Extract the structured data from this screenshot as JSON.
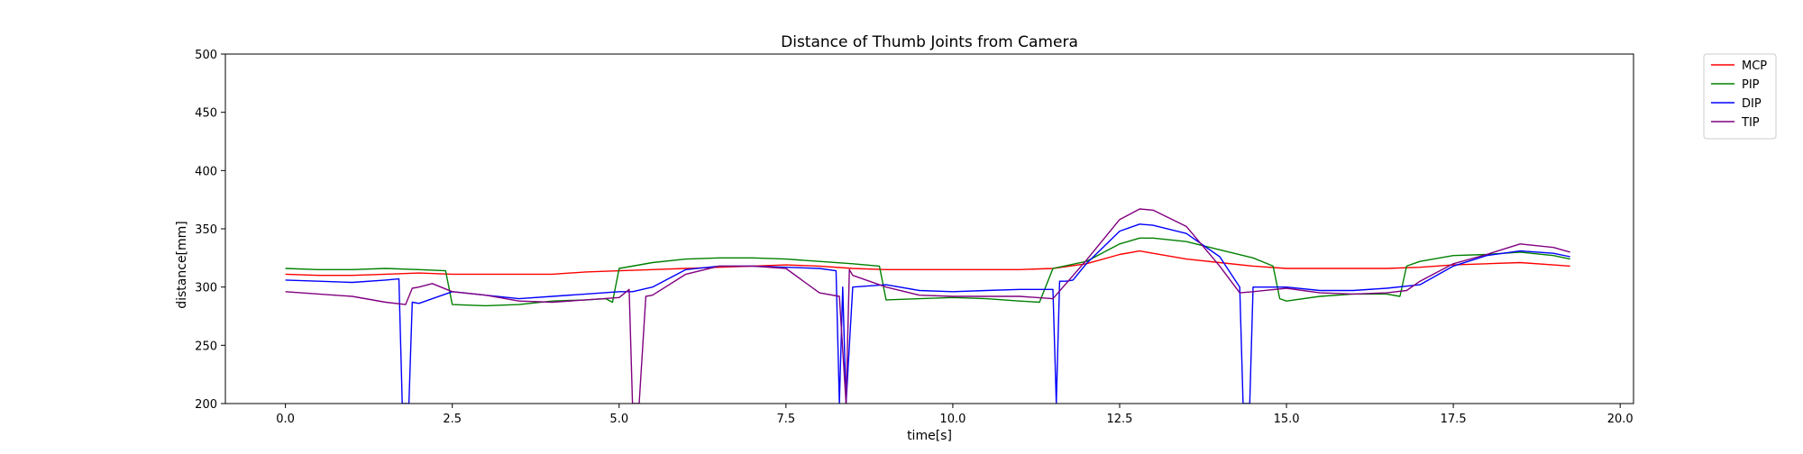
{
  "chart_data": {
    "type": "line",
    "title": "Distance of Thumb Joints from Camera",
    "xlabel": "time[s]",
    "ylabel": "distance[mm]",
    "xlim": [
      -0.9,
      20.2
    ],
    "ylim": [
      200,
      500
    ],
    "x_ticks": [
      0.0,
      2.5,
      5.0,
      7.5,
      10.0,
      12.5,
      15.0,
      17.5,
      20.0
    ],
    "x_tick_labels": [
      "0.0",
      "2.5",
      "5.0",
      "7.5",
      "10.0",
      "12.5",
      "15.0",
      "17.5",
      "20.0"
    ],
    "y_ticks": [
      200,
      250,
      300,
      350,
      400,
      450,
      500
    ],
    "y_tick_labels": [
      "200",
      "250",
      "300",
      "350",
      "400",
      "450",
      "500"
    ],
    "grid": false,
    "legend_position": "outside-top-right",
    "series": [
      {
        "name": "MCP",
        "color": "#ff0000",
        "x": [
          0,
          0.5,
          1.0,
          1.5,
          2.0,
          2.5,
          3.0,
          3.5,
          4.0,
          4.5,
          5.0,
          5.5,
          6.0,
          6.5,
          7.0,
          7.5,
          8.0,
          8.5,
          9.0,
          9.5,
          10.0,
          10.5,
          11.0,
          11.5,
          12.0,
          12.5,
          12.8,
          13.0,
          13.5,
          14.0,
          14.5,
          15.0,
          15.5,
          16.0,
          16.5,
          17.0,
          17.5,
          18.0,
          18.5,
          19.0,
          19.25
        ],
        "y": [
          311,
          310,
          310,
          311,
          312,
          311,
          311,
          311,
          311,
          313,
          314,
          315,
          316,
          317,
          318,
          319,
          318,
          316,
          315,
          315,
          315,
          315,
          315,
          316,
          320,
          328,
          331,
          329,
          324,
          321,
          318,
          316,
          316,
          316,
          316,
          317,
          319,
          320,
          321,
          319,
          318
        ]
      },
      {
        "name": "PIP",
        "color": "#008000",
        "x": [
          0,
          0.5,
          1.0,
          1.5,
          2.0,
          2.4,
          2.5,
          3.0,
          3.5,
          4.0,
          4.5,
          4.8,
          4.9,
          5.0,
          5.5,
          6.0,
          6.5,
          7.0,
          7.5,
          8.0,
          8.5,
          8.9,
          9.0,
          9.5,
          10.0,
          10.5,
          11.0,
          11.3,
          11.5,
          12.0,
          12.5,
          12.8,
          13.0,
          13.5,
          14.0,
          14.5,
          14.8,
          14.9,
          15.0,
          15.5,
          16.0,
          16.5,
          16.7,
          16.8,
          17.0,
          17.5,
          18.0,
          18.5,
          19.0,
          19.25
        ],
        "y": [
          316,
          315,
          315,
          316,
          315,
          314,
          285,
          284,
          285,
          288,
          289,
          290,
          287,
          316,
          321,
          324,
          325,
          325,
          324,
          322,
          320,
          318,
          289,
          290,
          291,
          290,
          288,
          287,
          316,
          322,
          337,
          342,
          342,
          339,
          332,
          325,
          318,
          290,
          288,
          292,
          294,
          294,
          292,
          318,
          322,
          327,
          328,
          330,
          327,
          324
        ]
      },
      {
        "name": "DIP",
        "color": "#0000ff",
        "x": [
          0,
          0.5,
          1.0,
          1.5,
          1.7,
          1.75,
          1.85,
          1.9,
          2.0,
          2.5,
          3.0,
          3.5,
          4.0,
          4.5,
          5.0,
          5.2,
          5.5,
          6.0,
          6.5,
          7.0,
          7.5,
          8.0,
          8.25,
          8.3,
          8.35,
          8.4,
          8.5,
          9.0,
          9.5,
          10.0,
          10.5,
          11.0,
          11.5,
          11.55,
          11.6,
          11.7,
          11.8,
          12.0,
          12.5,
          12.8,
          13.0,
          13.5,
          14.0,
          14.3,
          14.35,
          14.45,
          14.5,
          15.0,
          15.5,
          16.0,
          16.5,
          17.0,
          17.5,
          18.0,
          18.5,
          19.0,
          19.25
        ],
        "y": [
          306,
          305,
          304,
          306,
          307,
          200,
          200,
          287,
          286,
          296,
          293,
          290,
          292,
          294,
          296,
          296,
          300,
          315,
          318,
          318,
          317,
          316,
          314,
          200,
          300,
          200,
          300,
          302,
          297,
          296,
          297,
          298,
          298,
          200,
          305,
          305,
          306,
          320,
          348,
          354,
          353,
          346,
          326,
          300,
          200,
          200,
          300,
          300,
          297,
          297,
          299,
          302,
          318,
          327,
          331,
          329,
          326
        ]
      },
      {
        "name": "TIP",
        "color": "#800080",
        "x": [
          0,
          0.5,
          1.0,
          1.5,
          1.8,
          1.9,
          2.0,
          2.2,
          2.5,
          3.0,
          3.5,
          4.0,
          4.5,
          5.0,
          5.15,
          5.2,
          5.3,
          5.4,
          5.5,
          6.0,
          6.5,
          7.0,
          7.5,
          8.0,
          8.3,
          8.4,
          8.45,
          8.5,
          9.0,
          9.5,
          10.0,
          10.5,
          11.0,
          11.5,
          12.0,
          12.5,
          12.8,
          13.0,
          13.5,
          14.0,
          14.3,
          14.5,
          15.0,
          15.5,
          16.0,
          16.5,
          16.8,
          17.0,
          17.5,
          18.0,
          18.5,
          19.0,
          19.25
        ],
        "y": [
          296,
          294,
          292,
          287,
          285,
          299,
          300,
          303,
          296,
          293,
          288,
          287,
          289,
          291,
          298,
          200,
          200,
          292,
          293,
          311,
          318,
          318,
          316,
          295,
          292,
          200,
          315,
          310,
          300,
          293,
          292,
          292,
          292,
          290,
          323,
          358,
          367,
          366,
          352,
          318,
          295,
          296,
          299,
          295,
          294,
          295,
          297,
          305,
          320,
          328,
          337,
          334,
          330
        ]
      }
    ]
  }
}
